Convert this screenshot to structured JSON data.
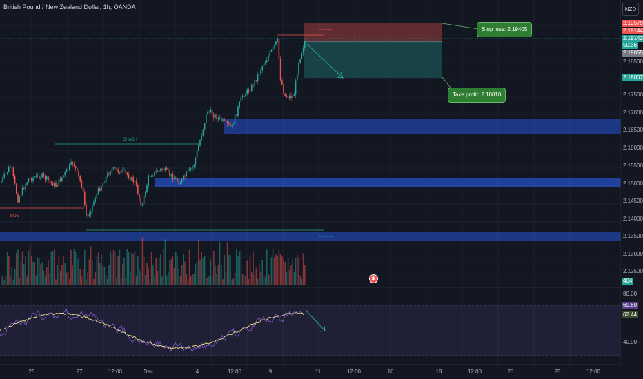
{
  "header": {
    "title": "British Pound / New Zealand Dollar, 1h, OANDA",
    "currency": "NZD"
  },
  "price_axis": {
    "ticks": [
      "2.18500",
      "2.17500",
      "2.17000",
      "2.16500",
      "2.16000",
      "2.15500",
      "2.15000",
      "2.14500",
      "2.14000",
      "2.13500",
      "2.13000",
      "2.12500"
    ]
  },
  "price_badges": {
    "stop_top": "2.19579",
    "stop_2": "2.19144",
    "current": "2.19142",
    "countdown": "50:36",
    "entry": "2.19055",
    "target": "2.18007",
    "volume": "404",
    "rsi_upper": "69.60",
    "rsi_value": "62.44"
  },
  "rsi_axis": {
    "top": "80.00",
    "bottom": "40.00"
  },
  "callouts": {
    "stop": "Stop loss: 2.19405",
    "take_profit": "Take profit: 2.18010"
  },
  "chart_labels": {
    "choch_top": "CHoCH",
    "bos_left": "BOS",
    "weak_high": "Weak High",
    "strong_low": "Strong Low"
  },
  "time_axis": {
    "ticks": [
      "25",
      "27",
      "12:00",
      "Dec",
      "4",
      "12:00",
      "9",
      "11",
      "12:00",
      "16",
      "18",
      "12:00",
      "23",
      "25",
      "12:00"
    ]
  },
  "colors": {
    "bull": "#26a69a",
    "bear": "#ef5350",
    "zone": "#2962ff",
    "rsi": "#7e57c2"
  }
}
